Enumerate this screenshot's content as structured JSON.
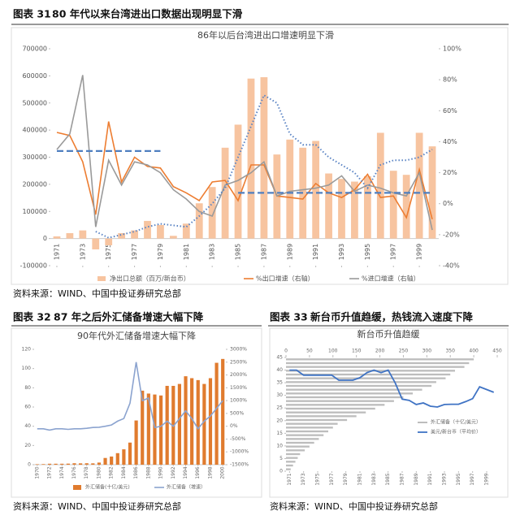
{
  "figures": [
    {
      "label": "图表 31",
      "title": "80 年代以来台湾进出口数据出现明显下滑",
      "source": "资料来源：WIND、中国中投证券研究总部"
    },
    {
      "label": "图表 32",
      "title": "87 年之后外汇储备增速大幅下降",
      "source": "资料来源：WIND、中国中投证券研究总部"
    },
    {
      "label": "图表 33",
      "title": "新台币升值趋缓，热钱流入速度下降",
      "source": "资料来源：WIND、中国中投证券研究总部"
    }
  ],
  "chart_data": [
    {
      "type": "combo",
      "title": "86年以后台湾进出口增速明显下滑",
      "x": [
        1971,
        1972,
        1973,
        1974,
        1975,
        1976,
        1977,
        1978,
        1979,
        1980,
        1981,
        1982,
        1983,
        1984,
        1985,
        1986,
        1987,
        1988,
        1989,
        1990,
        1991,
        1992,
        1993,
        1994,
        1995,
        1996,
        1997,
        1998,
        1999,
        2000
      ],
      "xlim": [
        1970.5,
        2000.5
      ],
      "xticks": [
        1971,
        1973,
        1975,
        1977,
        1979,
        1981,
        1983,
        1985,
        1987,
        1989,
        1991,
        1993,
        1995,
        1997,
        1999
      ],
      "ylim": [
        -100000,
        700000
      ],
      "yticks": [
        -100000,
        0,
        100000,
        200000,
        300000,
        400000,
        500000,
        600000,
        700000
      ],
      "y2lim": [
        -40,
        100
      ],
      "y2ticks": [
        {
          "value": -40,
          "label": "-40%"
        },
        {
          "value": -20,
          "label": "-20%"
        },
        {
          "value": 0,
          "label": "0%"
        },
        {
          "value": 20,
          "label": "20%"
        },
        {
          "value": 40,
          "label": "40%"
        },
        {
          "value": 60,
          "label": "60%"
        },
        {
          "value": 80,
          "label": "80%"
        },
        {
          "value": 100,
          "label": "100%"
        }
      ],
      "series": [
        {
          "name": "净出口总额（百万/新台币）",
          "kind": "bar",
          "color": "#f7c4a0",
          "values": [
            8000,
            20000,
            30000,
            -40000,
            -25000,
            20000,
            30000,
            65000,
            50000,
            10000,
            55000,
            130000,
            190000,
            335000,
            420000,
            590000,
            595000,
            310000,
            365000,
            335000,
            360000,
            240000,
            220000,
            210000,
            230000,
            390000,
            250000,
            235000,
            390000,
            340000
          ]
        },
        {
          "name": "%出口增速（右轴）",
          "kind": "line",
          "axis": "y2",
          "color": "#ed7d31",
          "values": [
            46,
            44,
            27,
            -7,
            53,
            14,
            30,
            24,
            23,
            11,
            7,
            2,
            14,
            15,
            2,
            25,
            25,
            5,
            4,
            3,
            13,
            7,
            4,
            9,
            19,
            4,
            5,
            -9,
            22,
            -10
          ]
        },
        {
          "name": "%进口增速（右轴）",
          "kind": "line",
          "axis": "y2",
          "color": "#9a9a9a",
          "values": [
            35,
            45,
            83,
            -15,
            28,
            12,
            27,
            25,
            20,
            9,
            3,
            -5,
            -8,
            12,
            15,
            20,
            27,
            5,
            8,
            9,
            10,
            12,
            18,
            8,
            12,
            10,
            7,
            5,
            20,
            -17
          ]
        },
        {
          "kind": "line",
          "axis": "y2",
          "color": "#5b84c4",
          "dash": "dot",
          "values": [
            null,
            null,
            null,
            -18,
            -22,
            -20,
            -18,
            -15,
            -13,
            -14,
            -15,
            -8,
            0,
            10,
            30,
            50,
            70,
            65,
            45,
            38,
            38,
            30,
            25,
            20,
            10,
            25,
            28,
            28,
            30,
            35
          ]
        }
      ],
      "reference_lines": [
        {
          "value": 34,
          "x": [
            1971,
            1979
          ],
          "axis": "y2",
          "color": "#4f7fc0"
        },
        {
          "value": 7,
          "x": [
            1985,
            2000
          ],
          "axis": "y2",
          "color": "#4f7fc0"
        }
      ]
    },
    {
      "type": "combo",
      "title": "90年代外汇储备增速大幅下降",
      "x": [
        1970,
        1971,
        1972,
        1973,
        1974,
        1975,
        1976,
        1977,
        1978,
        1979,
        1980,
        1981,
        1982,
        1983,
        1984,
        1985,
        1986,
        1987,
        1988,
        1989,
        1990,
        1991,
        1992,
        1993,
        1994,
        1995,
        1996,
        1997,
        1998,
        1999,
        2000
      ],
      "xlim": [
        1969.5,
        2000.5
      ],
      "xticks": [
        1970,
        1972,
        1974,
        1976,
        1978,
        1980,
        1982,
        1984,
        1986,
        1988,
        1990,
        1992,
        1994,
        1996,
        1998,
        2000
      ],
      "ylim": [
        0,
        120
      ],
      "yticks": [
        0,
        20,
        40,
        60,
        80,
        100,
        120
      ],
      "y2lim": [
        -1500,
        3000
      ],
      "y2ticks": [
        {
          "value": -1500,
          "label": "-1500%"
        },
        {
          "value": -1000,
          "label": "-1000%"
        },
        {
          "value": -500,
          "label": "-500%"
        },
        {
          "value": 0,
          "label": "0%"
        },
        {
          "value": 500,
          "label": "500%"
        },
        {
          "value": 1000,
          "label": "1000%"
        },
        {
          "value": 1500,
          "label": "1500%"
        },
        {
          "value": 2000,
          "label": "2000%"
        },
        {
          "value": 2500,
          "label": "2500%"
        },
        {
          "value": 3000,
          "label": "3000%"
        }
      ],
      "series": [
        {
          "name": "外汇储备(十亿/美元)",
          "kind": "bar",
          "color": "#e07b2e",
          "values": [
            0.5,
            0.6,
            1,
            1,
            1,
            1.1,
            1.5,
            1.4,
            1.5,
            1.4,
            2.2,
            7,
            8.5,
            12,
            16,
            23,
            46,
            77,
            74,
            73,
            72,
            82,
            82,
            84,
            92,
            90,
            88,
            84,
            90,
            106,
            110
          ]
        },
        {
          "name": "外汇储备（增速）",
          "kind": "line",
          "axis": "y2",
          "color": "#8ba3cf",
          "values": [
            -100,
            -100,
            -150,
            -100,
            -100,
            -120,
            -100,
            -100,
            -80,
            -50,
            -40,
            0,
            50,
            200,
            300,
            900,
            2500,
            1000,
            1100,
            -50,
            0,
            200,
            0,
            300,
            600,
            300,
            -100,
            200,
            400,
            700,
            1000
          ]
        }
      ]
    },
    {
      "type": "hbar-line",
      "title": "新台币升值趋缓",
      "x": [
        1971,
        1972,
        1973,
        1974,
        1975,
        1976,
        1977,
        1978,
        1979,
        1980,
        1981,
        1982,
        1983,
        1984,
        1985,
        1986,
        1987,
        1988,
        1989,
        1990,
        1991,
        1992,
        1993,
        1994,
        1995,
        1996,
        1997,
        1998,
        1999,
        2000
      ],
      "xlim": [
        1970.5,
        2000.5
      ],
      "xticks": [
        1971,
        1973,
        1975,
        1977,
        1979,
        1981,
        1983,
        1985,
        1987,
        1989,
        1991,
        1993,
        1995,
        1997,
        1999
      ],
      "ylim": [
        0,
        45
      ],
      "yticks": [
        0,
        5,
        10,
        15,
        20,
        25,
        30,
        35,
        40,
        45
      ],
      "x2lim": [
        0,
        450
      ],
      "x2ticks": [
        0,
        50,
        100,
        150,
        200,
        250,
        300,
        350,
        400,
        450
      ],
      "series": [
        {
          "name": "外汇储备（十亿/美元）",
          "kind": "hbar",
          "axis": "x2",
          "color": "#bdbdbd",
          "values": [
            10,
            15,
            20,
            25,
            30,
            40,
            50,
            60,
            70,
            80,
            90,
            100,
            110,
            130,
            150,
            170,
            190,
            210,
            230,
            250,
            270,
            290,
            310,
            320,
            340,
            350,
            360,
            380,
            390,
            400
          ]
        },
        {
          "name": "美元/新台币（平均价）",
          "kind": "line",
          "color": "#3f73c4",
          "values": [
            40,
            40,
            38,
            38,
            38,
            38,
            38,
            36,
            36,
            36,
            37,
            39,
            40,
            39,
            40,
            35,
            28.5,
            28,
            26.4,
            27,
            25.7,
            25.4,
            26.4,
            26.5,
            26.5,
            27.5,
            28.7,
            33.4,
            32.3,
            31.2
          ]
        }
      ]
    }
  ]
}
